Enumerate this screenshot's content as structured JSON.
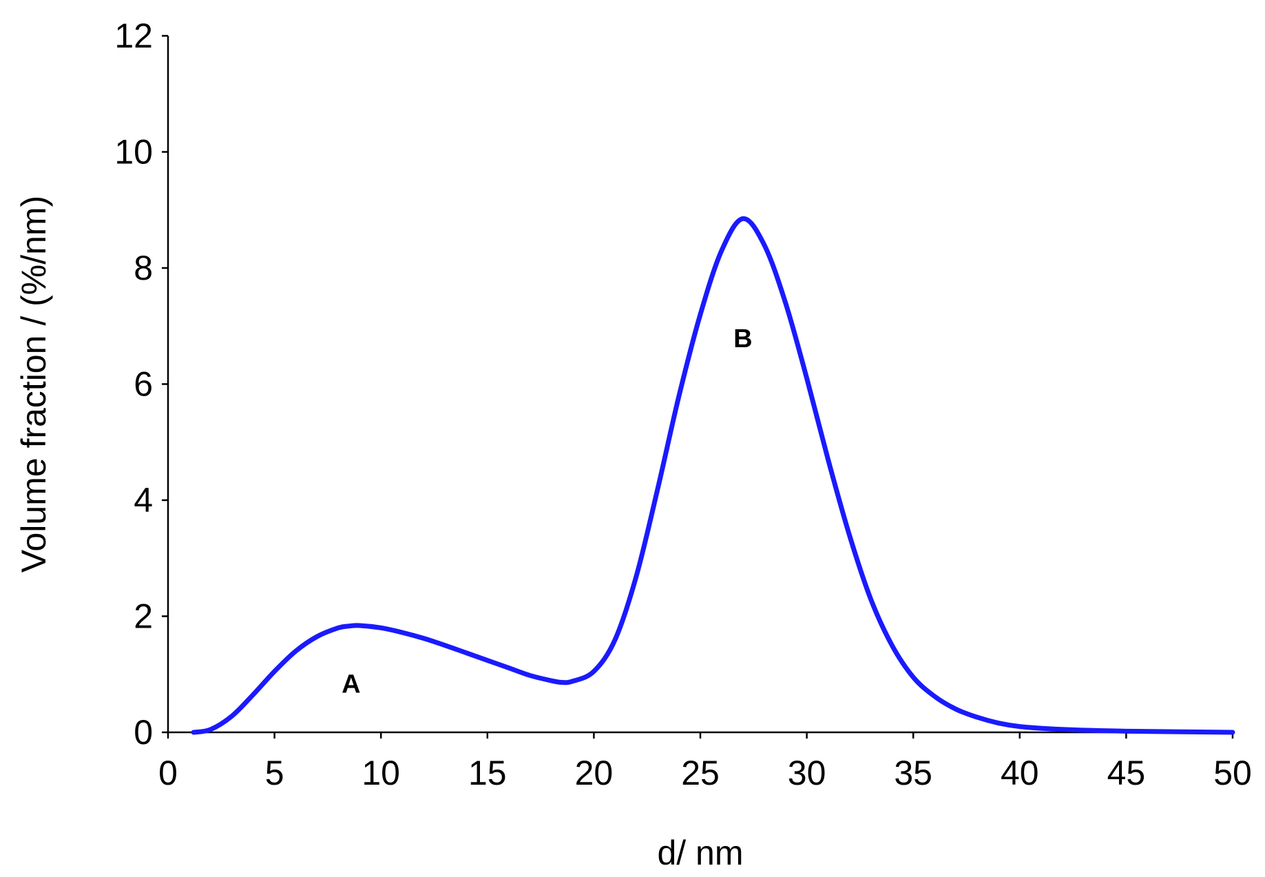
{
  "chart_data": {
    "type": "line",
    "title": "",
    "xlabel": "d/ nm",
    "ylabel": "Volume fraction / (%/nm)",
    "xlim": [
      0,
      50
    ],
    "ylim": [
      0,
      12
    ],
    "x_ticks": [
      "0",
      "5",
      "10",
      "15",
      "20",
      "25",
      "30",
      "35",
      "40",
      "45",
      "50"
    ],
    "y_ticks": [
      "0",
      "2",
      "4",
      "6",
      "8",
      "10",
      "12"
    ],
    "grid": false,
    "legend": "none",
    "line_color": "#1a1aff",
    "series": [
      {
        "values": [
          [
            1.2,
            0.0
          ],
          [
            2.0,
            0.05
          ],
          [
            3.0,
            0.28
          ],
          [
            4.0,
            0.65
          ],
          [
            5.0,
            1.05
          ],
          [
            6.0,
            1.4
          ],
          [
            7.0,
            1.65
          ],
          [
            8.0,
            1.8
          ],
          [
            8.5,
            1.83
          ],
          [
            9.0,
            1.84
          ],
          [
            10.0,
            1.8
          ],
          [
            11.0,
            1.72
          ],
          [
            12.0,
            1.62
          ],
          [
            13.0,
            1.5
          ],
          [
            14.0,
            1.37
          ],
          [
            15.0,
            1.24
          ],
          [
            16.0,
            1.11
          ],
          [
            17.0,
            0.98
          ],
          [
            18.0,
            0.89
          ],
          [
            18.5,
            0.86
          ],
          [
            19.0,
            0.88
          ],
          [
            20.0,
            1.05
          ],
          [
            21.0,
            1.6
          ],
          [
            22.0,
            2.7
          ],
          [
            23.0,
            4.2
          ],
          [
            24.0,
            5.8
          ],
          [
            25.0,
            7.2
          ],
          [
            26.0,
            8.3
          ],
          [
            27.0,
            8.85
          ],
          [
            28.0,
            8.4
          ],
          [
            29.0,
            7.4
          ],
          [
            30.0,
            6.1
          ],
          [
            31.0,
            4.7
          ],
          [
            32.0,
            3.4
          ],
          [
            33.0,
            2.3
          ],
          [
            34.0,
            1.5
          ],
          [
            35.0,
            0.95
          ],
          [
            36.0,
            0.62
          ],
          [
            37.0,
            0.4
          ],
          [
            38.0,
            0.26
          ],
          [
            39.0,
            0.16
          ],
          [
            40.0,
            0.1
          ],
          [
            42.0,
            0.05
          ],
          [
            45.0,
            0.02
          ],
          [
            50.0,
            0.0
          ]
        ]
      }
    ],
    "annotations": [
      {
        "text": "A",
        "x": 8.6,
        "y": 0.85
      },
      {
        "text": "B",
        "x": 27.0,
        "y": 6.8
      }
    ]
  }
}
